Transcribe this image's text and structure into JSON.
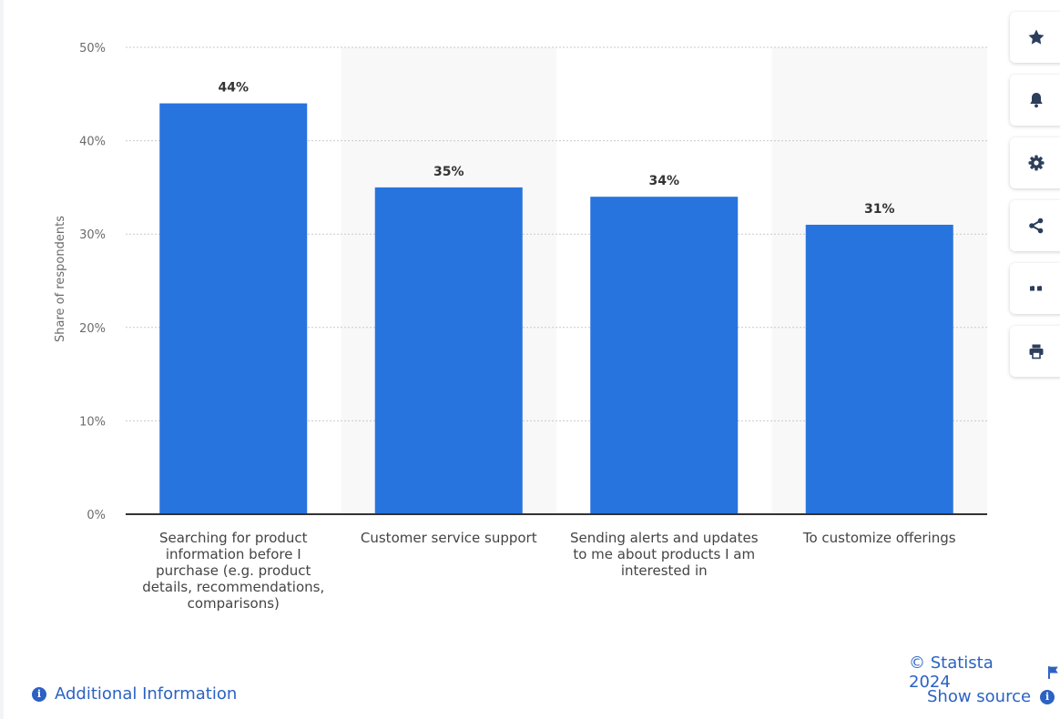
{
  "chart_data": {
    "type": "bar",
    "categories": [
      "Searching for product information before I purchase (e.g. product details, recommendations, comparisons)",
      "Customer service support",
      "Sending alerts and updates to me about products I am interested in",
      "To customize offerings"
    ],
    "category_lines": [
      [
        "Searching for product",
        "information before I",
        "purchase (e.g. product",
        "details, recommendations,",
        "comparisons)"
      ],
      [
        "Customer service support"
      ],
      [
        "Sending alerts and updates",
        "to me about products I am",
        "interested in"
      ],
      [
        "To customize offerings"
      ]
    ],
    "values": [
      44,
      35,
      34,
      31
    ],
    "data_labels": [
      "44%",
      "35%",
      "34%",
      "31%"
    ],
    "ylabel": "Share of respondents",
    "ylim": [
      0,
      50
    ],
    "yticks": [
      0,
      10,
      20,
      30,
      40,
      50
    ],
    "ytick_labels": [
      "0%",
      "10%",
      "20%",
      "30%",
      "40%",
      "50%"
    ],
    "grid": true,
    "bar_color": "#2874de",
    "alt_band_color": "#f8f8f9"
  },
  "sidebar": {
    "buttons": [
      {
        "icon": "star-icon",
        "name": "favorite-button"
      },
      {
        "icon": "bell-icon",
        "name": "notification-button"
      },
      {
        "icon": "gear-icon",
        "name": "settings-button"
      },
      {
        "icon": "share-icon",
        "name": "share-button"
      },
      {
        "icon": "quote-icon",
        "name": "cite-button"
      },
      {
        "icon": "print-icon",
        "name": "print-button"
      }
    ]
  },
  "footer": {
    "copyright": "© Statista 2024",
    "show_source": "Show source",
    "additional_info": "Additional Information",
    "link_color": "#2b62c3"
  }
}
